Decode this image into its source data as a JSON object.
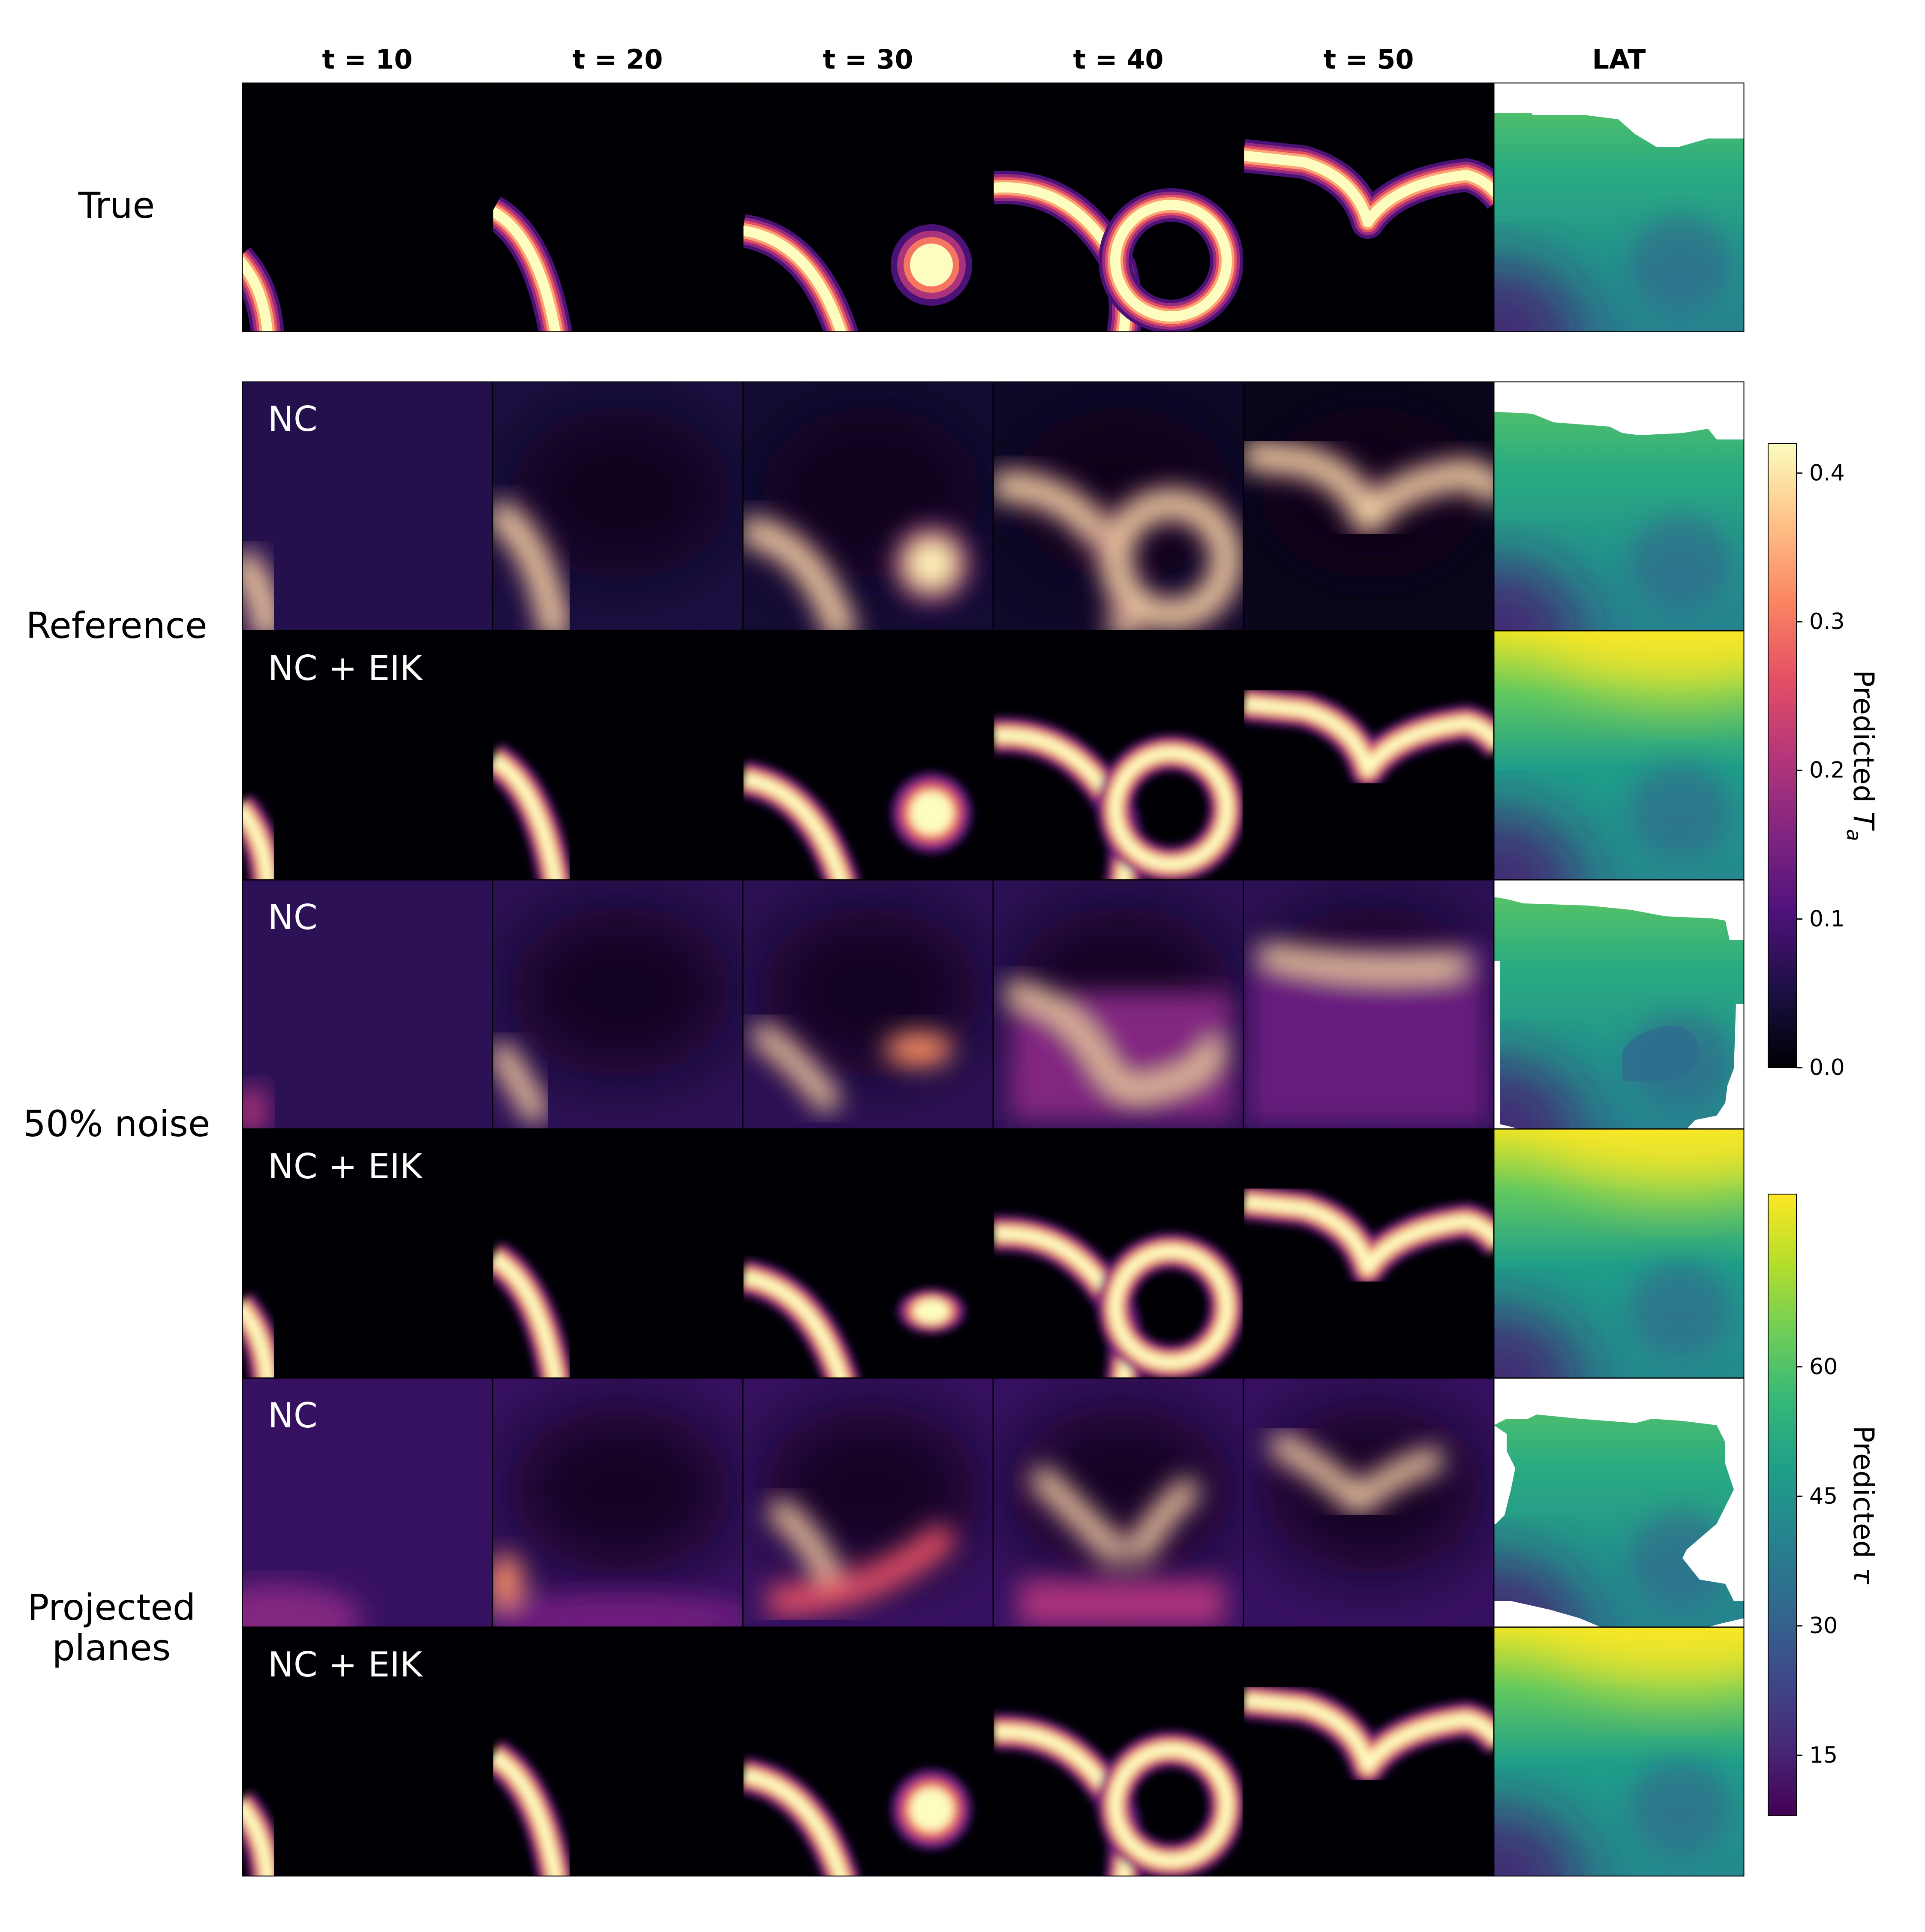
{
  "chart_data": {
    "type": "heatmap",
    "columns": [
      "t = 10",
      "t = 20",
      "t = 30",
      "t = 40",
      "t = 50",
      "LAT"
    ],
    "row_groups": [
      "True",
      "Reference",
      "50% noise",
      "Projected planes"
    ],
    "method_labels": [
      "NC",
      "NC + EIK",
      "NC",
      "NC + EIK",
      "NC",
      "NC + EIK"
    ],
    "colorbars": [
      {
        "label_prefix": "Predicted ",
        "label_symbol": "T",
        "label_sub": "a",
        "colormap": "magma",
        "range": [
          0.0,
          0.42
        ],
        "ticks": [
          "0.0",
          "0.1",
          "0.2",
          "0.3",
          "0.4"
        ],
        "tick_values": [
          0.0,
          0.1,
          0.2,
          0.3,
          0.4
        ]
      },
      {
        "label_prefix": "Predicted ",
        "label_symbol": "τ",
        "colormap": "viridis",
        "range": [
          8,
          80
        ],
        "ticks": [
          "15",
          "30",
          "45",
          "60"
        ],
        "tick_values": [
          15,
          30,
          45,
          60
        ]
      }
    ]
  }
}
